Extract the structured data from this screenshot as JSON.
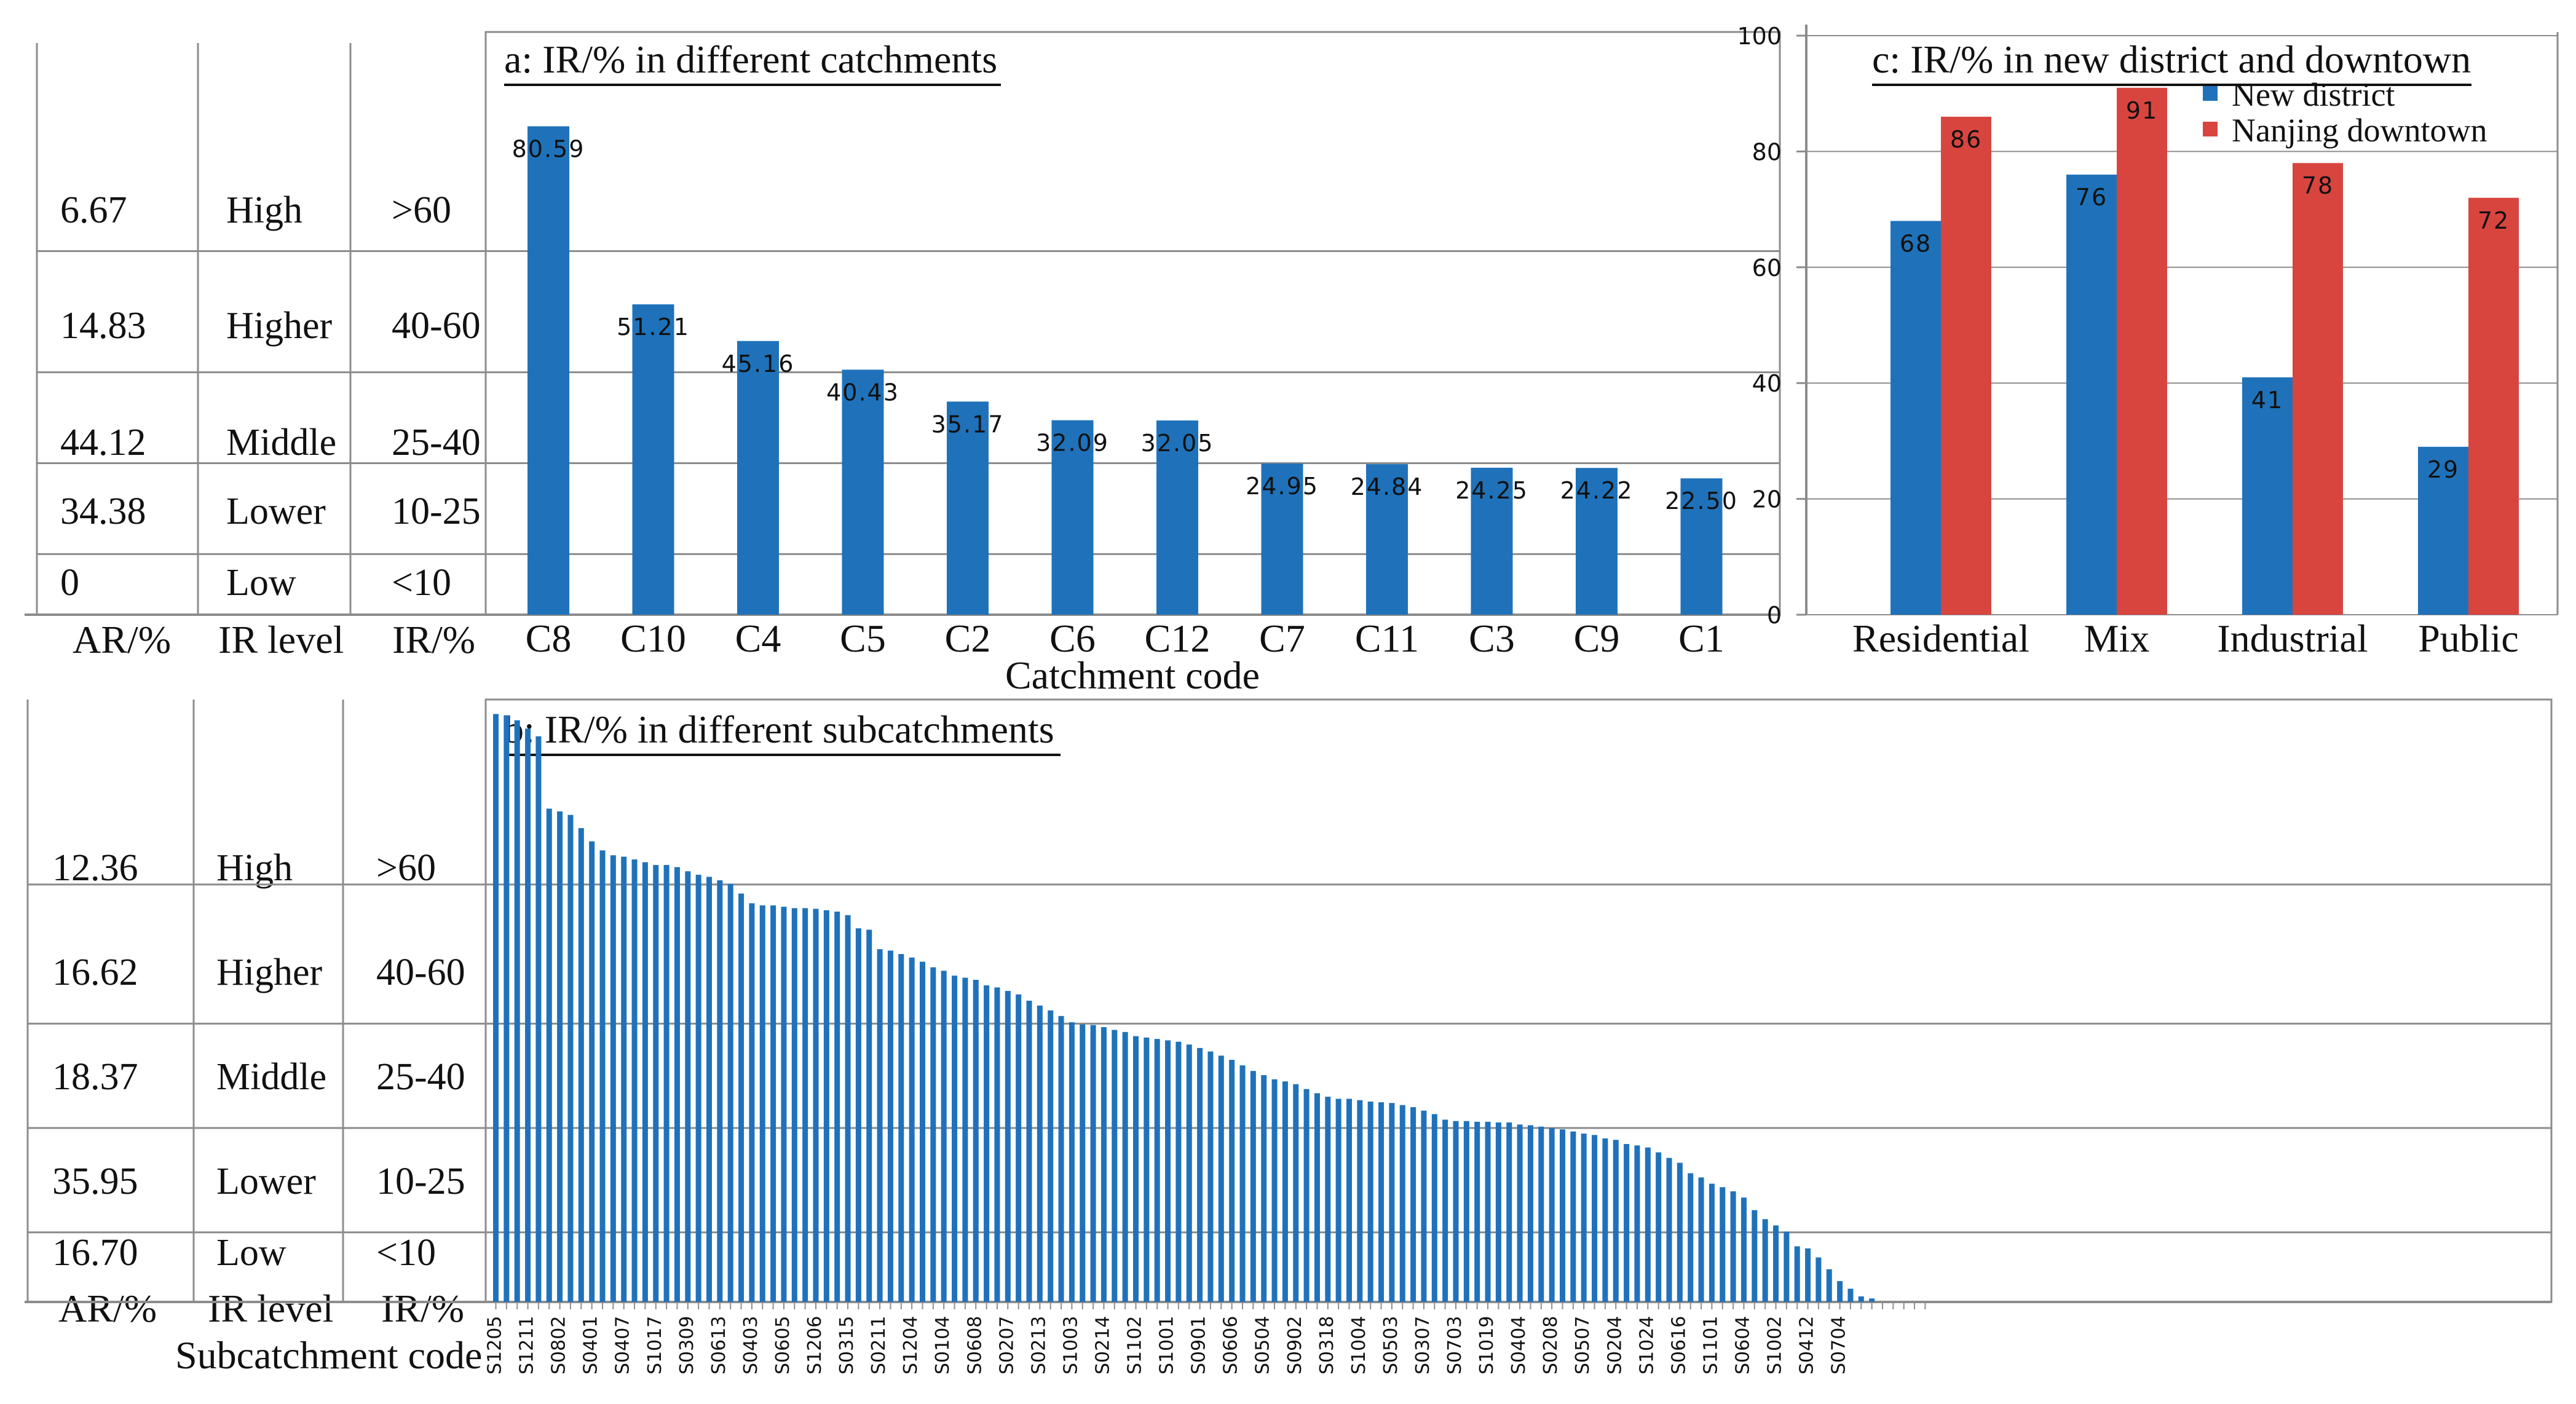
{
  "colors": {
    "blue": "#1f72ba",
    "red": "#d8453f",
    "grid": "#8c8c8c",
    "text": "#111111"
  },
  "panel_a": {
    "title": "a: IR/% in different catchments",
    "xlabel": "Catchment code",
    "table": {
      "headers": [
        "AR/%",
        "IR level",
        "IR/%"
      ],
      "rows": [
        {
          "ar": "6.67",
          "level": "High",
          "ir": ">60"
        },
        {
          "ar": "14.83",
          "level": "Higher",
          "ir": "40-60"
        },
        {
          "ar": "44.12",
          "level": "Middle",
          "ir": "25-40"
        },
        {
          "ar": "34.38",
          "level": "Lower",
          "ir": "10-25"
        },
        {
          "ar": "0",
          "level": "Low",
          "ir": "<10"
        }
      ]
    }
  },
  "panel_b": {
    "title": "b: IR/% in different subcatchments",
    "xlabel": "Subcatchment code",
    "table": {
      "headers": [
        "AR/%",
        "IR level",
        "IR/%"
      ],
      "rows": [
        {
          "ar": "12.36",
          "level": "High",
          "ir": ">60"
        },
        {
          "ar": "16.62",
          "level": "Higher",
          "ir": "40-60"
        },
        {
          "ar": "18.37",
          "level": "Middle",
          "ir": "25-40"
        },
        {
          "ar": "35.95",
          "level": "Lower",
          "ir": "10-25"
        },
        {
          "ar": "16.70",
          "level": "Low",
          "ir": "<10"
        }
      ]
    }
  },
  "panel_c": {
    "title": "c: IR/% in new district and downtown"
  },
  "chart_data": [
    {
      "id": "a",
      "type": "bar",
      "title": "a: IR/% in different catchments",
      "xlabel": "Catchment code",
      "ylabel": "",
      "categories": [
        "C8",
        "C10",
        "C4",
        "C5",
        "C2",
        "C6",
        "C12",
        "C7",
        "C11",
        "C3",
        "C9",
        "C1"
      ],
      "values": [
        80.59,
        51.21,
        45.16,
        40.43,
        35.17,
        32.09,
        32.05,
        24.95,
        24.84,
        24.25,
        24.22,
        22.5
      ],
      "data_labels": [
        "80.59",
        "51.21",
        "45.16",
        "40.43",
        "35.17",
        "32.09",
        "32.05",
        "24.95",
        "24.84",
        "24.25",
        "24.22",
        "22.50"
      ],
      "gridlines_at": [
        10,
        25,
        40,
        60
      ],
      "ylim": [
        0,
        100
      ],
      "color": "#1f72ba"
    },
    {
      "id": "b",
      "type": "bar",
      "title": "b: IR/% in different subcatchments",
      "xlabel": "Subcatchment code",
      "ylabel": "",
      "values": [
        84.5,
        84.3,
        83.6,
        82.4,
        81.3,
        70.9,
        70.5,
        70.0,
        68.1,
        66.2,
        64.9,
        64.2,
        64.0,
        63.6,
        63.2,
        62.8,
        62.8,
        62.5,
        61.9,
        61.4,
        61.1,
        60.6,
        60.1,
        58.7,
        57.3,
        57.0,
        57.0,
        56.8,
        56.6,
        56.6,
        56.5,
        56.3,
        56.1,
        55.6,
        53.7,
        53.5,
        50.7,
        50.5,
        50.0,
        49.5,
        48.9,
        48.1,
        47.6,
        46.9,
        46.6,
        46.3,
        45.5,
        45.2,
        44.7,
        44.2,
        43.3,
        42.6,
        41.9,
        41.1,
        40.2,
        39.9,
        39.8,
        39.5,
        39.1,
        38.8,
        38.2,
        38.0,
        37.8,
        37.6,
        37.4,
        37.0,
        36.5,
        36.0,
        35.4,
        34.8,
        34.0,
        33.2,
        32.6,
        32.0,
        31.7,
        31.3,
        30.6,
        30.0,
        29.5,
        29.2,
        29.2,
        29.0,
        28.8,
        28.7,
        28.6,
        28.3,
        28.0,
        27.5,
        27.0,
        26.2,
        26.0,
        26.0,
        25.9,
        25.9,
        25.8,
        25.8,
        25.5,
        25.4,
        25.2,
        25.0,
        24.8,
        24.5,
        24.2,
        24.0,
        23.5,
        23.3,
        22.7,
        22.5,
        22.2,
        21.5,
        20.7,
        20.0,
        18.5,
        17.9,
        17.0,
        16.5,
        15.9,
        15.0,
        13.2,
        11.9,
        11.0,
        10.1,
        8.0,
        7.7,
        6.4,
        4.7,
        3.0,
        1.9,
        0.8,
        0.5
      ],
      "tick_labels": [
        "S1205",
        "S1211",
        "S0802",
        "S0401",
        "S0407",
        "S1017",
        "S0309",
        "S0613",
        "S0403",
        "S0605",
        "S1206",
        "S0315",
        "S0211",
        "S1204",
        "S0104",
        "S0608",
        "S0207",
        "S0213",
        "S1003",
        "S0214",
        "S1102",
        "S1001",
        "S0901",
        "S0606",
        "S0504",
        "S0902",
        "S0318",
        "S1004",
        "S0503",
        "S0307",
        "S0703",
        "S1019",
        "S0404",
        "S0208",
        "S0507",
        "S0204",
        "S1024",
        "S0616",
        "S1101",
        "S0604",
        "S1002",
        "S0412",
        "S0704"
      ],
      "gridlines_at": [
        10,
        25,
        40,
        60
      ],
      "ylim": [
        0,
        100
      ],
      "color": "#1f72ba"
    },
    {
      "id": "c",
      "type": "bar",
      "title": "c: IR/% in new district and downtown",
      "categories": [
        "Residential",
        "Mix",
        "Industrial",
        "Public"
      ],
      "series": [
        {
          "name": "New district",
          "values": [
            68,
            76,
            41,
            29
          ],
          "color": "#1f72ba"
        },
        {
          "name": "Nanjing downtown",
          "values": [
            86,
            91,
            78,
            72
          ],
          "color": "#d8453f"
        }
      ],
      "yticks": [
        "0",
        "20",
        "40",
        "60",
        "80",
        "100"
      ],
      "ylim": [
        0,
        100
      ],
      "legend": "top-right",
      "gridlines": true
    }
  ]
}
